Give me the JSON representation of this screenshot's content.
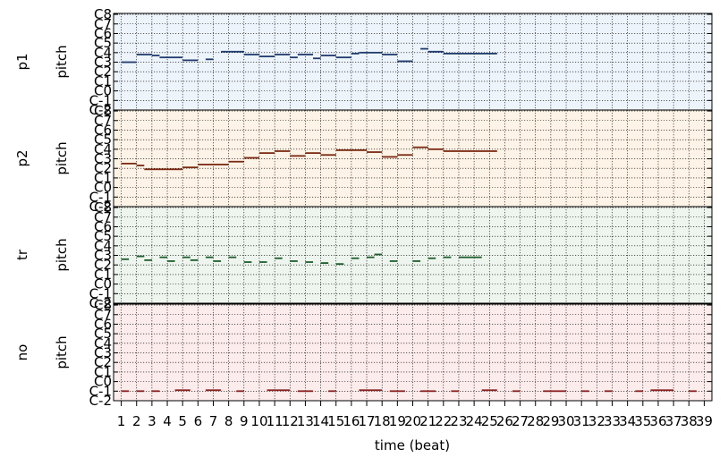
{
  "chart_data": {
    "type": "pianoroll",
    "xlabel": "time (beat)",
    "x_ticks": [
      "1",
      "2",
      "3",
      "4",
      "5",
      "6",
      "7",
      "8",
      "9",
      "10",
      "11",
      "12",
      "13",
      "14",
      "15",
      "16",
      "17",
      "18",
      "19",
      "20",
      "21",
      "22",
      "23",
      "24",
      "25",
      "26",
      "27",
      "28",
      "29",
      "30",
      "31",
      "32",
      "33",
      "34",
      "35",
      "36",
      "37",
      "38",
      "39"
    ],
    "y_ticks": [
      "C-2",
      "C-1",
      "C0",
      "C1",
      "C2",
      "C3",
      "C4",
      "C5",
      "C6",
      "C7",
      "C8"
    ],
    "xlim": [
      0.5,
      39.5
    ],
    "ylim": [
      -2,
      8.1
    ],
    "grid": true,
    "tracks": [
      {
        "name": "p1",
        "ylabel": "pitch",
        "bg": "#eef4fb",
        "note_color": "#1f3b6e",
        "notes": [
          {
            "start": 1.0,
            "end": 2.0,
            "pitch": 3.0
          },
          {
            "start": 2.0,
            "end": 3.0,
            "pitch": 3.8
          },
          {
            "start": 3.0,
            "end": 3.5,
            "pitch": 3.7
          },
          {
            "start": 3.5,
            "end": 5.0,
            "pitch": 3.5
          },
          {
            "start": 5.0,
            "end": 6.0,
            "pitch": 3.2
          },
          {
            "start": 6.5,
            "end": 7.0,
            "pitch": 3.3
          },
          {
            "start": 7.5,
            "end": 9.0,
            "pitch": 4.1
          },
          {
            "start": 9.0,
            "end": 10.0,
            "pitch": 3.8
          },
          {
            "start": 10.0,
            "end": 11.0,
            "pitch": 3.6
          },
          {
            "start": 11.0,
            "end": 12.0,
            "pitch": 3.8
          },
          {
            "start": 12.0,
            "end": 12.5,
            "pitch": 3.5
          },
          {
            "start": 12.5,
            "end": 13.5,
            "pitch": 3.8
          },
          {
            "start": 13.5,
            "end": 14.0,
            "pitch": 3.4
          },
          {
            "start": 14.0,
            "end": 15.0,
            "pitch": 3.7
          },
          {
            "start": 15.0,
            "end": 16.0,
            "pitch": 3.5
          },
          {
            "start": 16.0,
            "end": 16.5,
            "pitch": 3.9
          },
          {
            "start": 16.5,
            "end": 18.0,
            "pitch": 4.0
          },
          {
            "start": 18.0,
            "end": 19.0,
            "pitch": 3.8
          },
          {
            "start": 19.0,
            "end": 20.0,
            "pitch": 3.1
          },
          {
            "start": 20.5,
            "end": 21.0,
            "pitch": 4.4
          },
          {
            "start": 21.0,
            "end": 22.0,
            "pitch": 4.1
          },
          {
            "start": 22.0,
            "end": 25.5,
            "pitch": 3.9
          }
        ]
      },
      {
        "name": "p2",
        "ylabel": "pitch",
        "bg": "#fdf3e6",
        "note_color": "#7a2a12",
        "notes": [
          {
            "start": 1.0,
            "end": 2.0,
            "pitch": 2.5
          },
          {
            "start": 2.0,
            "end": 2.5,
            "pitch": 2.3
          },
          {
            "start": 2.5,
            "end": 5.0,
            "pitch": 1.9
          },
          {
            "start": 5.0,
            "end": 6.0,
            "pitch": 2.1
          },
          {
            "start": 6.0,
            "end": 8.0,
            "pitch": 2.4
          },
          {
            "start": 8.0,
            "end": 9.0,
            "pitch": 2.7
          },
          {
            "start": 9.0,
            "end": 10.0,
            "pitch": 3.1
          },
          {
            "start": 10.0,
            "end": 11.0,
            "pitch": 3.6
          },
          {
            "start": 11.0,
            "end": 12.0,
            "pitch": 3.8
          },
          {
            "start": 12.0,
            "end": 13.0,
            "pitch": 3.3
          },
          {
            "start": 13.0,
            "end": 14.0,
            "pitch": 3.6
          },
          {
            "start": 14.0,
            "end": 15.0,
            "pitch": 3.4
          },
          {
            "start": 15.0,
            "end": 17.0,
            "pitch": 3.9
          },
          {
            "start": 17.0,
            "end": 18.0,
            "pitch": 3.7
          },
          {
            "start": 18.0,
            "end": 19.0,
            "pitch": 3.2
          },
          {
            "start": 19.0,
            "end": 20.0,
            "pitch": 3.4
          },
          {
            "start": 20.0,
            "end": 21.0,
            "pitch": 4.2
          },
          {
            "start": 21.0,
            "end": 22.0,
            "pitch": 4.0
          },
          {
            "start": 22.0,
            "end": 25.5,
            "pitch": 3.8
          }
        ]
      },
      {
        "name": "tr",
        "ylabel": "pitch",
        "bg": "#eef5ee",
        "note_color": "#1d5e2a",
        "notes": [
          {
            "start": 1.0,
            "end": 1.5,
            "pitch": 2.6
          },
          {
            "start": 2.0,
            "end": 2.5,
            "pitch": 2.9
          },
          {
            "start": 2.5,
            "end": 3.0,
            "pitch": 2.5
          },
          {
            "start": 3.5,
            "end": 4.0,
            "pitch": 2.8
          },
          {
            "start": 4.0,
            "end": 4.5,
            "pitch": 2.4
          },
          {
            "start": 5.0,
            "end": 5.5,
            "pitch": 2.8
          },
          {
            "start": 5.5,
            "end": 6.0,
            "pitch": 2.5
          },
          {
            "start": 6.5,
            "end": 7.0,
            "pitch": 2.8
          },
          {
            "start": 7.0,
            "end": 7.5,
            "pitch": 2.4
          },
          {
            "start": 8.0,
            "end": 8.5,
            "pitch": 2.8
          },
          {
            "start": 9.0,
            "end": 9.5,
            "pitch": 2.3
          },
          {
            "start": 10.0,
            "end": 10.5,
            "pitch": 2.3
          },
          {
            "start": 11.0,
            "end": 11.5,
            "pitch": 2.7
          },
          {
            "start": 12.0,
            "end": 12.5,
            "pitch": 2.4
          },
          {
            "start": 13.0,
            "end": 13.5,
            "pitch": 2.3
          },
          {
            "start": 14.0,
            "end": 14.5,
            "pitch": 2.2
          },
          {
            "start": 15.0,
            "end": 15.5,
            "pitch": 2.1
          },
          {
            "start": 16.0,
            "end": 16.5,
            "pitch": 2.7
          },
          {
            "start": 17.0,
            "end": 17.5,
            "pitch": 2.8
          },
          {
            "start": 17.5,
            "end": 18.0,
            "pitch": 3.1
          },
          {
            "start": 18.5,
            "end": 19.0,
            "pitch": 2.4
          },
          {
            "start": 20.0,
            "end": 20.5,
            "pitch": 2.4
          },
          {
            "start": 21.0,
            "end": 21.5,
            "pitch": 2.7
          },
          {
            "start": 22.0,
            "end": 22.5,
            "pitch": 2.8
          },
          {
            "start": 23.0,
            "end": 24.5,
            "pitch": 2.8
          }
        ]
      },
      {
        "name": "no",
        "ylabel": "pitch",
        "bg": "#fcecec",
        "note_color": "#8a2020",
        "notes": [
          {
            "start": 1.0,
            "end": 1.5,
            "pitch": -1.0
          },
          {
            "start": 2.0,
            "end": 2.5,
            "pitch": -1.0
          },
          {
            "start": 3.0,
            "end": 3.5,
            "pitch": -1.0
          },
          {
            "start": 4.5,
            "end": 5.5,
            "pitch": -0.9
          },
          {
            "start": 6.5,
            "end": 7.5,
            "pitch": -0.9
          },
          {
            "start": 8.5,
            "end": 9.0,
            "pitch": -1.0
          },
          {
            "start": 10.5,
            "end": 12.0,
            "pitch": -0.9
          },
          {
            "start": 12.5,
            "end": 13.5,
            "pitch": -1.0
          },
          {
            "start": 14.5,
            "end": 15.0,
            "pitch": -1.0
          },
          {
            "start": 16.5,
            "end": 18.0,
            "pitch": -0.9
          },
          {
            "start": 18.5,
            "end": 19.5,
            "pitch": -1.0
          },
          {
            "start": 20.5,
            "end": 21.5,
            "pitch": -1.0
          },
          {
            "start": 22.5,
            "end": 23.0,
            "pitch": -1.0
          },
          {
            "start": 24.5,
            "end": 25.5,
            "pitch": -0.9
          },
          {
            "start": 26.5,
            "end": 27.0,
            "pitch": -1.0
          },
          {
            "start": 28.5,
            "end": 30.0,
            "pitch": -1.0
          },
          {
            "start": 31.0,
            "end": 31.5,
            "pitch": -1.0
          },
          {
            "start": 32.5,
            "end": 33.0,
            "pitch": -1.0
          },
          {
            "start": 34.5,
            "end": 35.0,
            "pitch": -1.0
          },
          {
            "start": 35.5,
            "end": 37.0,
            "pitch": -0.9
          },
          {
            "start": 38.0,
            "end": 38.5,
            "pitch": -1.0
          }
        ]
      }
    ]
  }
}
